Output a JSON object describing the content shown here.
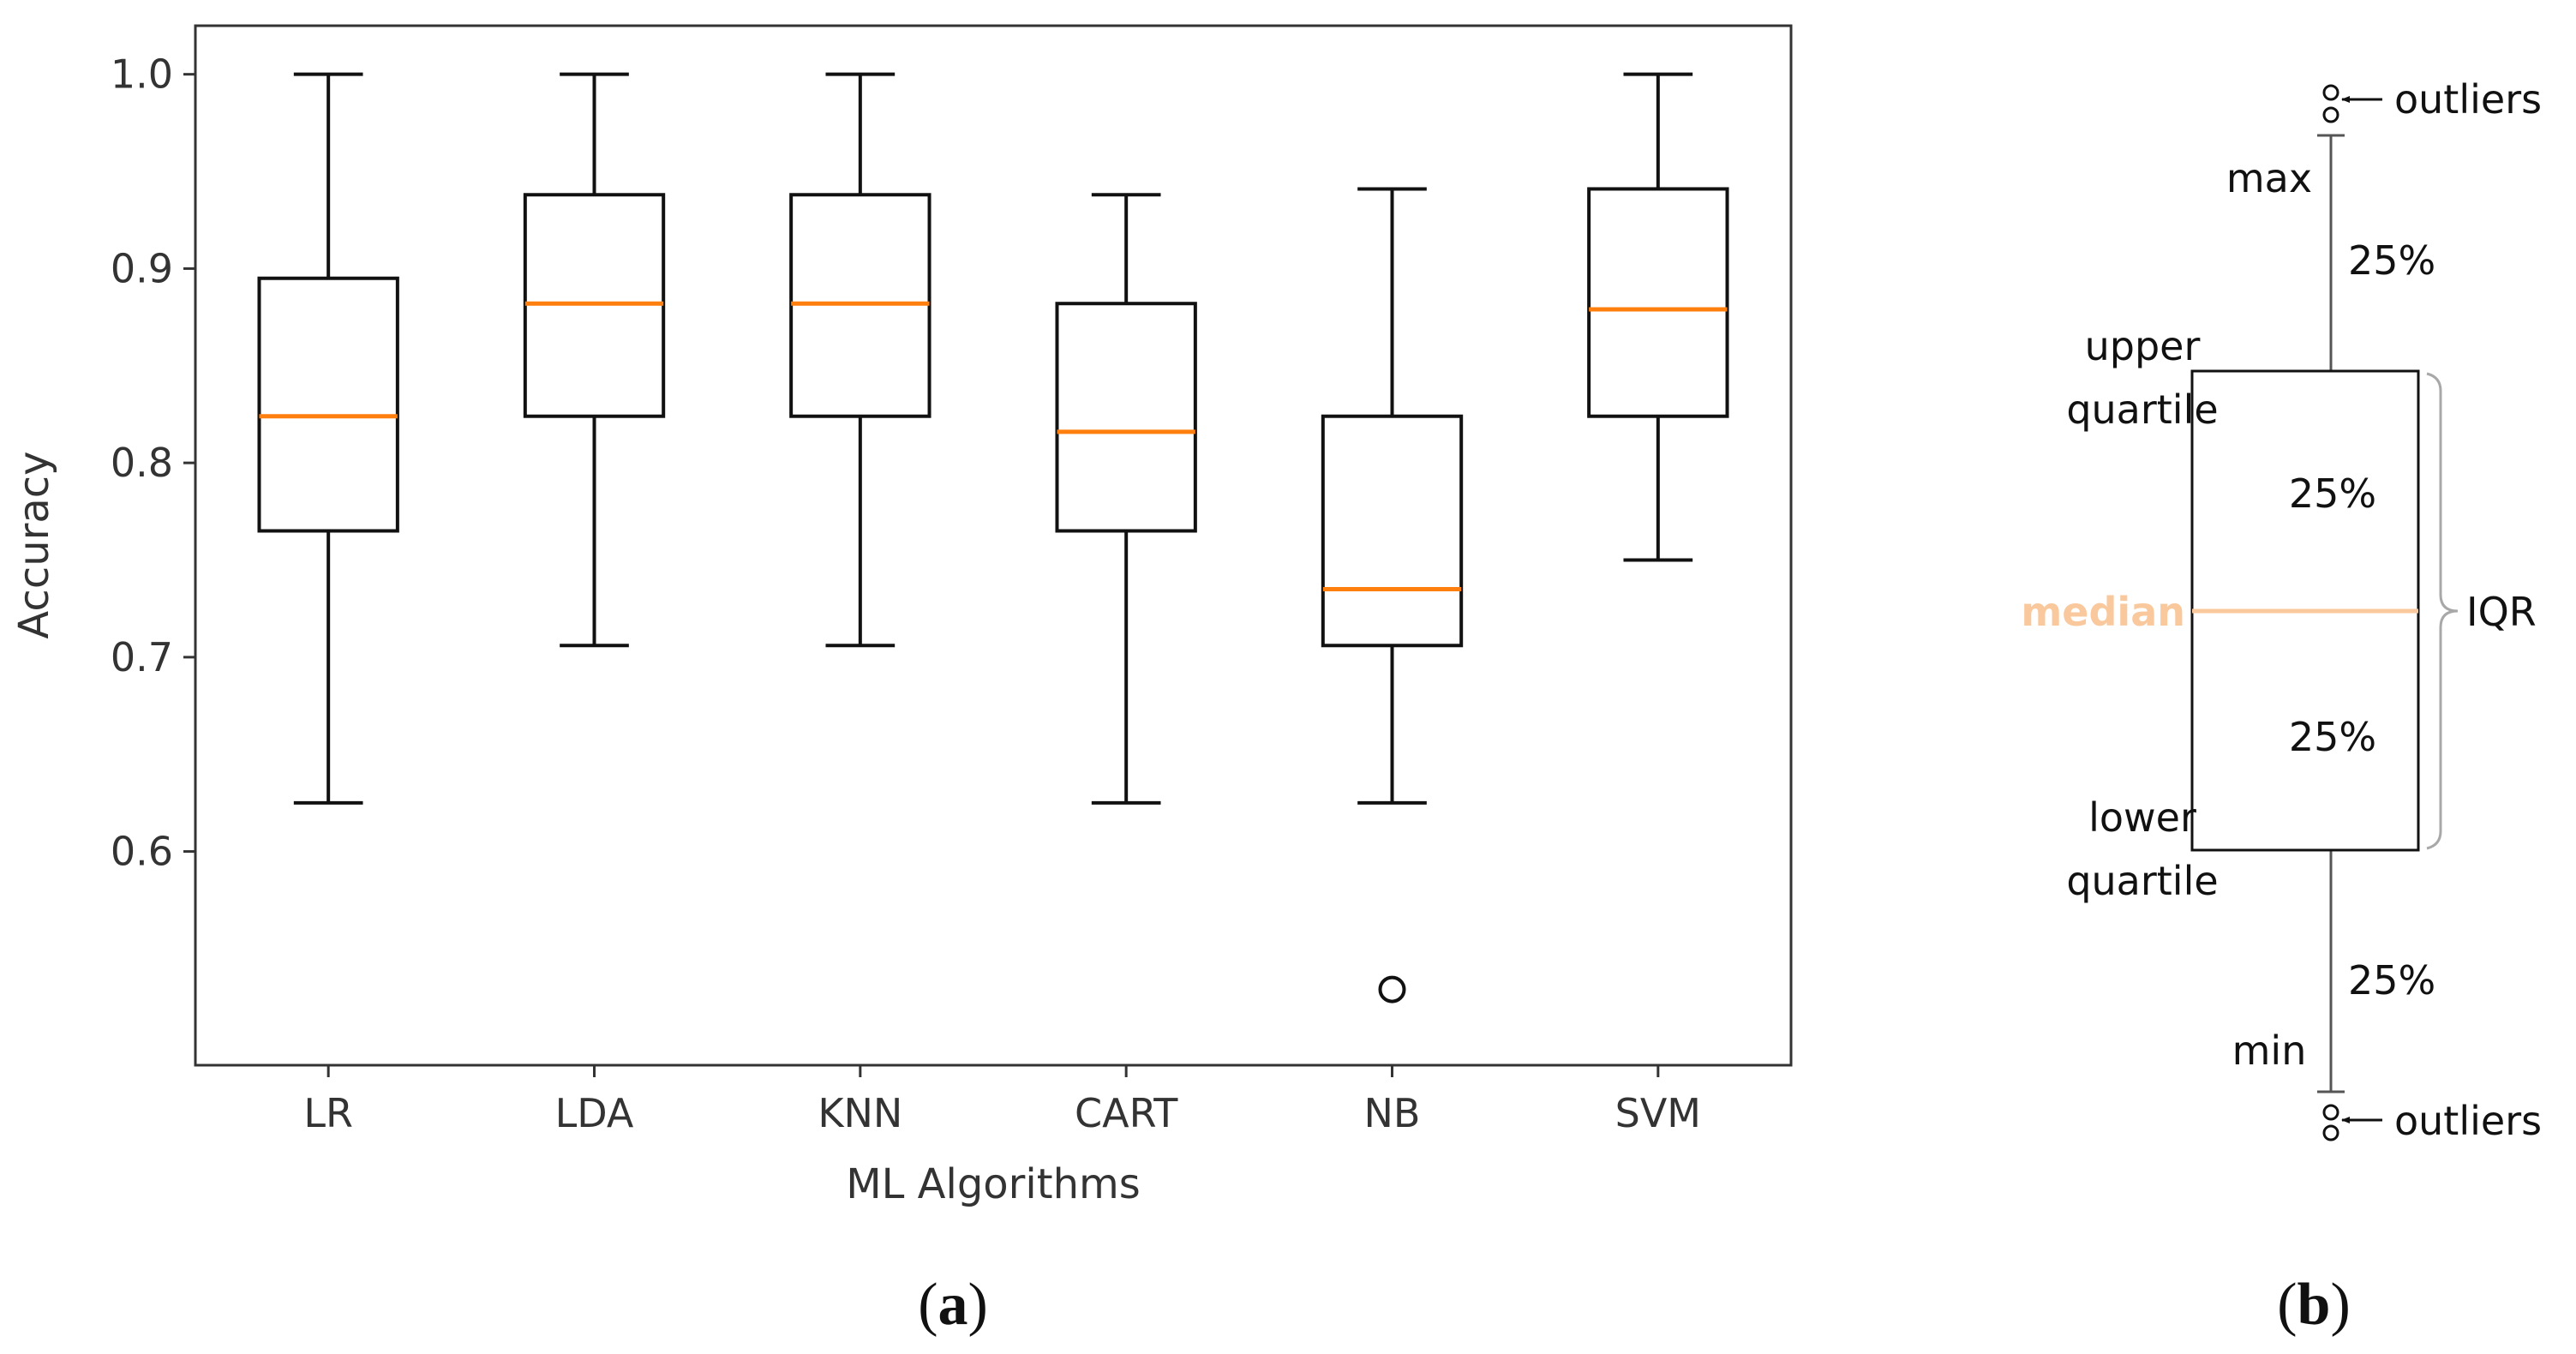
{
  "colors": {
    "box": "#111111",
    "median": "#ff7f0e",
    "median_light": "#f9c99d",
    "axis": "#333333",
    "diagram_line": "#555555",
    "bracket": "#a8a8a8"
  },
  "chart_data": [
    {
      "type": "box",
      "panel_label": "a",
      "title": "",
      "xlabel": "ML Algorithms",
      "ylabel": "Accuracy",
      "ylim": [
        0.49,
        1.025
      ],
      "yticks": [
        "0.6",
        "0.7",
        "0.8",
        "0.9",
        "1.0"
      ],
      "ytick_values": [
        0.6,
        0.7,
        0.8,
        0.9,
        1.0
      ],
      "categories": [
        "LR",
        "LDA",
        "KNN",
        "CART",
        "NB",
        "SVM"
      ],
      "boxes": [
        {
          "name": "LR",
          "whisker_low": 0.625,
          "q1": 0.765,
          "median": 0.824,
          "q3": 0.895,
          "whisker_high": 1.0,
          "outliers": []
        },
        {
          "name": "LDA",
          "whisker_low": 0.706,
          "q1": 0.824,
          "median": 0.882,
          "q3": 0.938,
          "whisker_high": 1.0,
          "outliers": []
        },
        {
          "name": "KNN",
          "whisker_low": 0.706,
          "q1": 0.824,
          "median": 0.882,
          "q3": 0.938,
          "whisker_high": 1.0,
          "outliers": []
        },
        {
          "name": "CART",
          "whisker_low": 0.625,
          "q1": 0.765,
          "median": 0.816,
          "q3": 0.882,
          "whisker_high": 0.938,
          "outliers": []
        },
        {
          "name": "NB",
          "whisker_low": 0.625,
          "q1": 0.706,
          "median": 0.735,
          "q3": 0.824,
          "whisker_high": 0.941,
          "outliers": [
            0.529
          ]
        },
        {
          "name": "SVM",
          "whisker_low": 0.75,
          "q1": 0.824,
          "median": 0.879,
          "q3": 0.941,
          "whisker_high": 1.0,
          "outliers": []
        }
      ]
    }
  ],
  "diagram": {
    "panel_label": "b",
    "labels": {
      "outliers_top": "outliers",
      "max": "max",
      "upper_pct": "25%",
      "upper_quartile_1": "upper",
      "upper_quartile_2": "quartile",
      "box_upper_pct": "25%",
      "median": "median",
      "iqr": "IQR",
      "box_lower_pct": "25%",
      "lower_quartile_1": "lower",
      "lower_quartile_2": "quartile",
      "lower_pct": "25%",
      "min": "min",
      "outliers_bottom": "outliers"
    }
  }
}
